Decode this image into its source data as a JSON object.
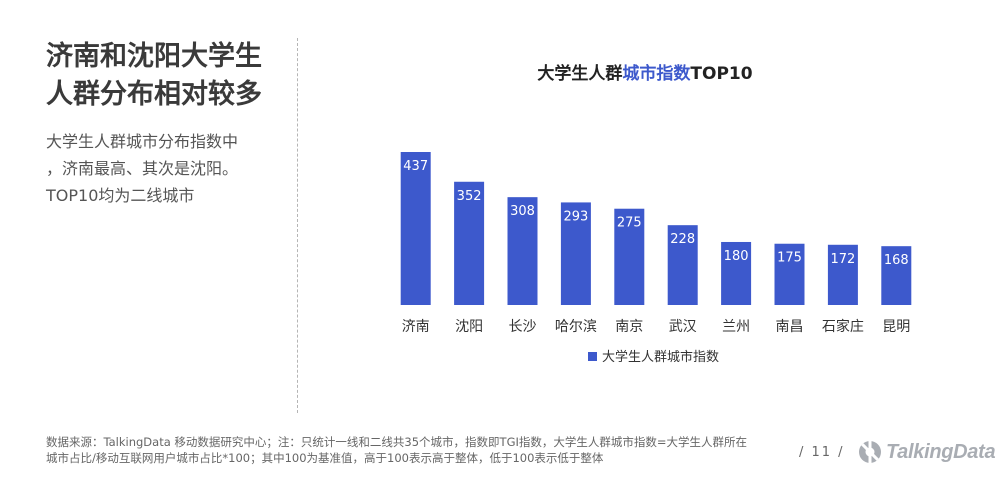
{
  "headline": {
    "line1": "济南和沈阳大学生",
    "line2": "人群分布相对较多"
  },
  "summary": {
    "line1": "大学生人群城市分布指数中",
    "line2": "，济南最高、其次是沈阳。",
    "line3": "TOP10均为二线城市"
  },
  "chart_title": {
    "prefix": "大学生人群",
    "highlight": "城市指数",
    "suffix": "TOP10"
  },
  "chart_data": {
    "type": "bar",
    "title": "大学生人群城市指数TOP10",
    "categories": [
      "济南",
      "沈阳",
      "长沙",
      "哈尔滨",
      "南京",
      "武汉",
      "兰州",
      "南昌",
      "石家庄",
      "昆明"
    ],
    "series": [
      {
        "name": "大学生人群城市指数",
        "values": [
          437,
          352,
          308,
          293,
          275,
          228,
          180,
          175,
          172,
          168
        ]
      }
    ],
    "ylim": [
      0,
      437
    ],
    "xlabel": "",
    "ylabel": "",
    "grid": false,
    "legend": "bottom-center",
    "colors": {
      "bar": "#3d59cc",
      "label": "#ffffff",
      "accent": "#3d59cc"
    }
  },
  "footnote": {
    "line1": "数据来源：TalkingData 移动数据研究中心；注：只统计一线和二线共35个城市，指数即TGI指数，大学生人群城市指数=大学生人群所在",
    "line2": "城市占比/移动互联网用户城市占比*100；其中100为基准值，高于100表示高于整体，低于100表示低于整体"
  },
  "page_number": "/ 11 /",
  "brand": {
    "name": "TalkingData"
  }
}
